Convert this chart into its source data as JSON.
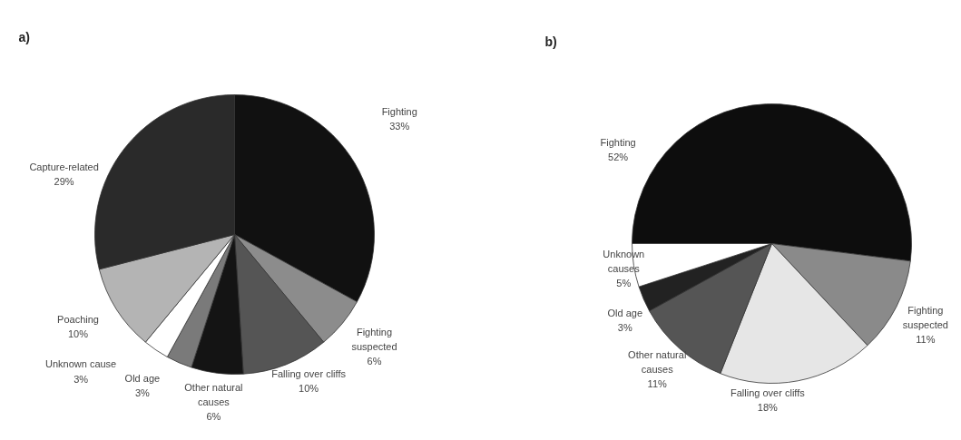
{
  "chart_data": [
    {
      "type": "pie",
      "title": "a)",
      "categories": [
        "Fighting",
        "Fighting suspected",
        "Falling over cliffs",
        "Other natural causes",
        "Old age",
        "Unknown cause",
        "Poaching",
        "Capture-related"
      ],
      "values": [
        33,
        6,
        10,
        6,
        3,
        3,
        10,
        29
      ],
      "colors": [
        "#111111",
        "#8c8c8c",
        "#555555",
        "#141414",
        "#7a7a7a",
        "#ffffff",
        "#b4b4b4",
        "#2a2a2a"
      ],
      "value_labels": [
        "33%",
        "6%",
        "10%",
        "6%",
        "3%",
        "3%",
        "10%",
        "29%"
      ]
    },
    {
      "type": "pie",
      "title": "b)",
      "categories": [
        "Fighting",
        "Fighting suspected",
        "Falling over cliffs",
        "Other natural causes",
        "Old age",
        "Unknown causes"
      ],
      "values": [
        52,
        11,
        18,
        11,
        3,
        5
      ],
      "colors": [
        "#0d0d0d",
        "#8a8a8a",
        "#e6e6e6",
        "#555555",
        "#222222",
        "#ffffff"
      ],
      "value_labels": [
        "52%",
        "11%",
        "18%",
        "11%",
        "3%",
        "5%"
      ]
    }
  ]
}
